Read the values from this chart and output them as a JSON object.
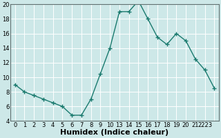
{
  "x_indices": [
    0,
    1,
    2,
    3,
    4,
    5,
    6,
    7,
    8,
    9,
    10,
    11,
    12,
    13,
    14,
    15,
    16,
    17,
    18,
    19,
    20,
    21
  ],
  "y": [
    9.0,
    8.0,
    7.5,
    7.0,
    6.5,
    6.0,
    4.8,
    4.8,
    7.0,
    10.5,
    14.0,
    19.0,
    19.0,
    20.5,
    18.0,
    15.5,
    14.5,
    16.0,
    15.0,
    12.5,
    11.0,
    8.5
  ],
  "xtick_positions": [
    0,
    1,
    2,
    3,
    4,
    5,
    6,
    7,
    8,
    9,
    10,
    11,
    12,
    13,
    14,
    15,
    16,
    17,
    18,
    19,
    20,
    21
  ],
  "xtick_labels": [
    "0",
    "1",
    "2",
    "3",
    "4",
    "5",
    "6",
    "7",
    "8",
    "9",
    "10",
    "13",
    "14",
    "15",
    "16",
    "17",
    "18",
    "19",
    "20",
    "21",
    "2223",
    ""
  ],
  "xlabel": "Humidex (Indice chaleur)",
  "ylim": [
    4,
    20
  ],
  "xlim": [
    -0.5,
    21.5
  ],
  "yticks": [
    4,
    6,
    8,
    10,
    12,
    14,
    16,
    18,
    20
  ],
  "line_color": "#1a7a6e",
  "bg_color": "#cde8e8",
  "grid_color": "#ffffff",
  "tick_fontsize": 6,
  "xlabel_fontsize": 8,
  "linewidth": 1.0,
  "markersize": 4
}
